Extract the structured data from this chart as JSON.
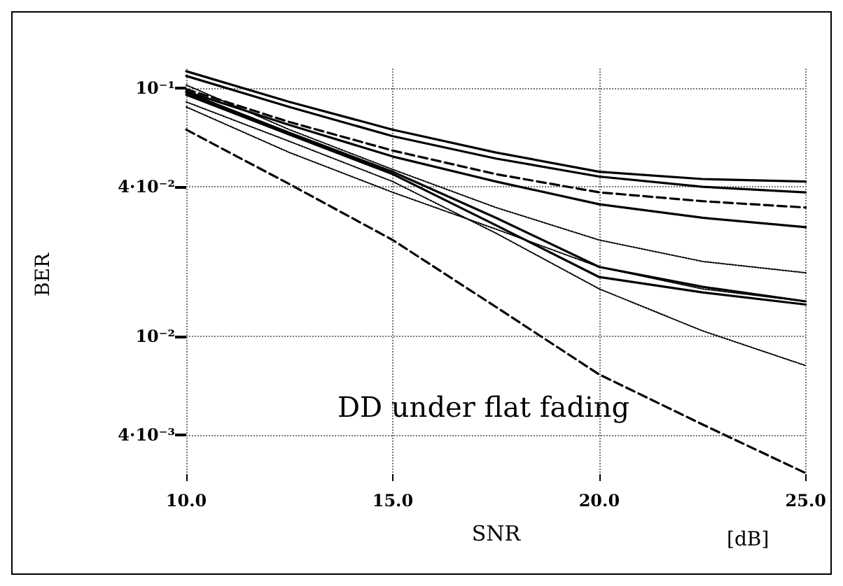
{
  "chart_data": {
    "type": "line",
    "xlabel": "SNR",
    "ylabel": "BER",
    "annotations": [
      "DD under flat fading",
      "[dB]"
    ],
    "x": [
      10,
      12.5,
      15,
      17.5,
      20,
      22.5,
      25
    ],
    "series": [
      {
        "color": "#000000",
        "line_style": "solid",
        "values": [
          0.117,
          0.088,
          0.068,
          0.055,
          0.046,
          0.043,
          0.042
        ]
      },
      {
        "color": "#000000",
        "line_style": "solid",
        "values": [
          0.112,
          0.084,
          0.064,
          0.052,
          0.044,
          0.04,
          0.038
        ]
      },
      {
        "color": "#000000",
        "line_style": "dashed",
        "values": [
          0.099,
          0.073,
          0.056,
          0.045,
          0.038,
          0.035,
          0.033
        ]
      },
      {
        "color": "#000000",
        "line_style": "solid",
        "values": [
          0.097,
          0.071,
          0.053,
          0.042,
          0.034,
          0.03,
          0.0275
        ]
      },
      {
        "color": "#000000",
        "line_style": "solid",
        "values": [
          0.096,
          0.066,
          0.046,
          0.03,
          0.019,
          0.0158,
          0.0138
        ]
      },
      {
        "color": "#000000",
        "line_style": "solid",
        "values": [
          0.094,
          0.065,
          0.045,
          0.028,
          0.0173,
          0.015,
          0.0134
        ]
      },
      {
        "color": "#000000",
        "line_style": "dotted",
        "values": [
          0.103,
          0.068,
          0.047,
          0.033,
          0.0244,
          0.02,
          0.018
        ]
      },
      {
        "color": "#000000",
        "line_style": "dotted",
        "values": [
          0.088,
          0.061,
          0.042,
          0.026,
          0.0155,
          0.0105,
          0.0076
        ]
      },
      {
        "color": "#000000",
        "line_style": "dotted",
        "values": [
          0.084,
          0.055,
          0.038,
          0.027,
          0.019,
          0.0155,
          0.0138
        ]
      },
      {
        "color": "#000000",
        "line_style": "dashed",
        "values": [
          0.068,
          0.041,
          0.0244,
          0.0131,
          0.007,
          0.0044,
          0.0028
        ]
      }
    ],
    "xlim": [
      10,
      25
    ],
    "xticks": [
      {
        "value": 10,
        "label": "10.0"
      },
      {
        "value": 15,
        "label": "15.0"
      },
      {
        "value": 20,
        "label": "20.0"
      },
      {
        "value": 25,
        "label": "25.0"
      }
    ],
    "ylim": [
      0.0026,
      0.12
    ],
    "yticks": [
      {
        "value": 0.1,
        "label": "10⁻¹"
      },
      {
        "value": 0.04,
        "label": "4·10⁻²"
      },
      {
        "value": 0.01,
        "label": "10⁻²"
      },
      {
        "value": 0.004,
        "label": "4·10⁻³"
      }
    ],
    "log": "y",
    "grid": true,
    "marker": "none"
  }
}
